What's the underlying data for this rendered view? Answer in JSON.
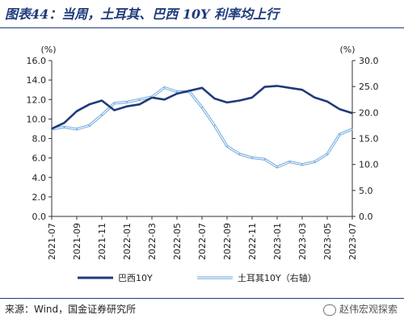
{
  "title": "图表44：当周，土耳其、巴西 10Y 利率均上行",
  "source": "来源：Wind，国金证券研究所",
  "watermark": "赵伟宏观探索",
  "chart_data": {
    "type": "line",
    "title": "",
    "y_left": {
      "unit": "(%)",
      "ylim": [
        0,
        16
      ],
      "ticks": [
        "0.0",
        "2.0",
        "4.0",
        "6.0",
        "8.0",
        "10.0",
        "12.0",
        "14.0",
        "16.0"
      ]
    },
    "y_right": {
      "unit": "(%)",
      "ylim": [
        0,
        30
      ],
      "ticks": [
        "0.0",
        "5.0",
        "10.0",
        "15.0",
        "20.0",
        "25.0",
        "30.0"
      ]
    },
    "x_ticks": [
      "2021-07",
      "2021-09",
      "2021-11",
      "2022-01",
      "2022-03",
      "2022-05",
      "2022-07",
      "2022-09",
      "2022-11",
      "2023-01",
      "2023-03",
      "2023-05",
      "2023-07"
    ],
    "colors": {
      "brazil": "#1f3b7a",
      "turkey": "#6fa8dc"
    },
    "legend_position": "bottom",
    "series": [
      {
        "name": "巴西10Y",
        "axis": "left",
        "x": [
          "2021-07",
          "2021-08",
          "2021-09",
          "2021-10",
          "2021-11",
          "2021-12",
          "2022-01",
          "2022-02",
          "2022-03",
          "2022-04",
          "2022-05",
          "2022-06",
          "2022-07",
          "2022-08",
          "2022-09",
          "2022-10",
          "2022-11",
          "2022-12",
          "2023-01",
          "2023-02",
          "2023-03",
          "2023-04",
          "2023-05",
          "2023-06",
          "2023-07"
        ],
        "values": [
          9.0,
          9.6,
          10.8,
          11.5,
          11.9,
          10.9,
          11.3,
          11.5,
          12.2,
          12.0,
          12.6,
          12.9,
          13.2,
          12.1,
          11.7,
          11.9,
          12.2,
          13.3,
          13.4,
          13.2,
          13.0,
          12.2,
          11.8,
          11.0,
          10.6
        ]
      },
      {
        "name": "土耳其10Y（右轴）",
        "axis": "right",
        "x": [
          "2021-07",
          "2021-08",
          "2021-09",
          "2021-10",
          "2021-11",
          "2021-12",
          "2022-01",
          "2022-02",
          "2022-03",
          "2022-04",
          "2022-05",
          "2022-06",
          "2022-07",
          "2022-08",
          "2022-09",
          "2022-10",
          "2022-11",
          "2022-12",
          "2023-01",
          "2023-02",
          "2023-03",
          "2023-04",
          "2023-05",
          "2023-06",
          "2023-07"
        ],
        "values": [
          16.8,
          17.2,
          16.8,
          17.5,
          19.5,
          21.8,
          22.0,
          22.5,
          23.0,
          24.8,
          24.0,
          24.0,
          21.0,
          17.5,
          13.5,
          12.0,
          11.3,
          11.0,
          9.5,
          10.5,
          10.0,
          10.5,
          12.0,
          15.8,
          16.8
        ]
      }
    ]
  }
}
